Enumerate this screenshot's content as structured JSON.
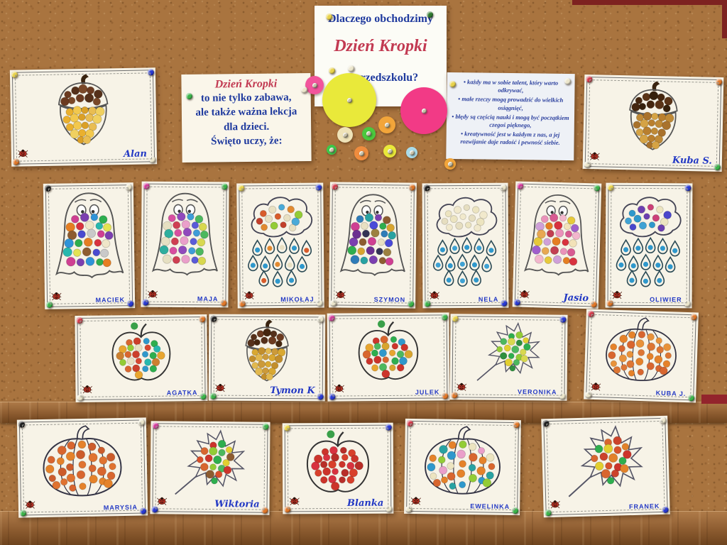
{
  "signs": {
    "top": {
      "line1": "Dlaczego obchodzimy",
      "title": "Dzień Kropki",
      "line2": "w przedszkolu?"
    },
    "left": {
      "title": "Dzień Kropki",
      "line1": "to nie tylko zabawa,",
      "line2": "ale także ważna lekcja",
      "line3": "dla dzieci.",
      "line4": "Święto uczy, że:"
    },
    "right": {
      "bullets": [
        "każdy ma w sobie talent, który warto odkrywać,",
        "małe rzeczy mogą prowadzić do wielkich osiągnięć,",
        "błędy są częścią nauki i mogą być początkiem czegoś pięknego,",
        "kreatywność jest w każdym z nas, a jej rozwijanie daje radość i pewność siebie."
      ]
    }
  },
  "colors": {
    "sign_title": "#c23a52",
    "sign_text": "#1f3a9e",
    "name_label": "#2238c4"
  },
  "decor_dots": [
    {
      "color": "#f2549c",
      "size": 26
    },
    {
      "color": "#e9e93a",
      "size": 76
    },
    {
      "color": "#f23a86",
      "size": 66
    },
    {
      "color": "#f2a53a",
      "size": 24
    },
    {
      "color": "#efe3b8",
      "size": 22
    },
    {
      "color": "#4cc83e",
      "size": 19
    },
    {
      "color": "#3ec84a",
      "size": 14
    },
    {
      "color": "#ef8c3e",
      "size": 20
    },
    {
      "color": "#e9e93a",
      "size": 18
    },
    {
      "color": "#aadcea",
      "size": 16
    },
    {
      "color": "#f2a53a",
      "size": 16
    }
  ],
  "artworks": [
    {
      "label": "Alan",
      "label_style": "script",
      "type": "acorn",
      "cap_colors": [
        "#6b3a20",
        "#55301a",
        "#7a4828"
      ],
      "dot_colors": [
        "#eab02e",
        "#f2c84e",
        "#dba027",
        "#e9bd52",
        "#f0d060"
      ]
    },
    {
      "label": "Kuba S.",
      "label_style": "script",
      "type": "acorn",
      "cap_colors": [
        "#45260f",
        "#5a3317",
        "#35200c"
      ],
      "dot_colors": [
        "#c08a36",
        "#a9722c",
        "#d5a345",
        "#b97f2e"
      ]
    },
    {
      "label": "MACIEK",
      "label_style": "print",
      "type": "ghost",
      "dot_colors": [
        "#cf3f92",
        "#7b3fb0",
        "#2f93d8",
        "#2eae4e",
        "#e57e22",
        "#d8323f",
        "#efe6c8",
        "#27b8ae",
        "#e3e352",
        "#8d5c30",
        "#4a4ad0",
        "#c9c9c9"
      ]
    },
    {
      "label": "MAJA",
      "label_style": "print",
      "type": "ghost",
      "dot_colors": [
        "#d84fa0",
        "#9049bc",
        "#3f9cd8",
        "#4cb85e",
        "#e6e0c2",
        "#cf3f52",
        "#ea9fca",
        "#5b5bd8",
        "#d8d84f",
        "#2eae9e"
      ]
    },
    {
      "label": "MIKOŁAJ",
      "label_style": "print",
      "type": "cloudrain",
      "dot_colors": [
        "#d85c2b",
        "#e8e0c2",
        "#4aaad8",
        "#e28a30",
        "#93cc36",
        "#c23f2b",
        "#e8e0c2"
      ],
      "drop_dot_colors": [
        "#2f98cc",
        "#e28a30",
        "#e8e0c2",
        "#2f98cc",
        "#d85c2b",
        "#2f98cc"
      ]
    },
    {
      "label": "SZYMON",
      "label_style": "print",
      "type": "ghost",
      "dot_colors": [
        "#2f7cb8",
        "#28a2a2",
        "#7b3fb0",
        "#8d5c30",
        "#cf3f92",
        "#e8e0c2",
        "#4a4ad8",
        "#2eae4e",
        "#d8a52f",
        "#6b2f90",
        "#333355",
        "#9c8040"
      ]
    },
    {
      "label": "NELA",
      "label_style": "print",
      "type": "cloudrain",
      "dot_colors": [
        "#ece4c0",
        "#f1e9cc",
        "#e6dec0"
      ],
      "drop_dot_colors": [
        "#2f98cc",
        "#3fa2d4"
      ]
    },
    {
      "label": "Jasio",
      "label_style": "script",
      "type": "ghost",
      "dot_colors": [
        "#ea92ba",
        "#d85a92",
        "#f2b6cc",
        "#e6c93a",
        "#cfa0d8",
        "#e57e22",
        "#d8323f",
        "#f2e2b8",
        "#a05fcc",
        "#e8a852",
        "#c23f52"
      ]
    },
    {
      "label": "OLIWIER",
      "label_style": "print",
      "type": "cloudrain",
      "dot_colors": [
        "#2f98cc",
        "#6b3fb0",
        "#cc3f78",
        "#ece4c0",
        "#4a46cc",
        "#3fa2d4"
      ],
      "drop_dot_colors": [
        "#2f98cc"
      ]
    },
    {
      "label": "AGATKA",
      "label_style": "print",
      "type": "apple",
      "dot_colors": [
        "#d8662f",
        "#cc3f2b",
        "#2f98cc",
        "#2eae4e",
        "#e8a52f",
        "#93cc36",
        "#e8e0c2",
        "#d8462f",
        "#27b8ae",
        "#cc8030"
      ]
    },
    {
      "label": "Tymon K",
      "label_style": "script",
      "type": "acorn",
      "cap_colors": [
        "#55301a",
        "#6b3a20",
        "#45260f"
      ],
      "dot_colors": [
        "#d9a832",
        "#c28e2c",
        "#e2b84e",
        "#cc9a3a"
      ]
    },
    {
      "label": "JULEK",
      "label_style": "print",
      "type": "apple",
      "dot_colors": [
        "#cc342b",
        "#d8662f",
        "#2eae4e",
        "#2f98cc",
        "#e8a52f",
        "#4cb85e",
        "#d8a52f",
        "#cc342b"
      ]
    },
    {
      "label": "VERONIKA",
      "label_style": "print",
      "type": "leaf",
      "dot_colors": [
        "#2eae4e",
        "#93cc36",
        "#e2cf2f",
        "#4cb85e",
        "#d8d84f",
        "#2f8f3f"
      ]
    },
    {
      "label": "KUBA J.",
      "label_style": "print",
      "type": "pumpkin",
      "dot_colors": [
        "#e5822a",
        "#d8662f",
        "#e8923a",
        "#dd7634"
      ]
    },
    {
      "label": "MARYSIA",
      "label_style": "print",
      "type": "pumpkin",
      "dot_colors": [
        "#d8662f",
        "#e5822a",
        "#cc5c2b",
        "#e07330"
      ]
    },
    {
      "label": "Wiktoria",
      "label_style": "script",
      "type": "leaf",
      "dot_colors": [
        "#cc342b",
        "#2eae4e",
        "#e2cf2f",
        "#d8662f",
        "#93cc36",
        "#4cb85e",
        "#8d5c30",
        "#d84f2b"
      ]
    },
    {
      "label": "Blanka",
      "label_style": "script",
      "type": "apple",
      "dot_colors": [
        "#cc342b",
        "#d8323f",
        "#b82e28",
        "#d8402b"
      ]
    },
    {
      "label": "EWELINKA",
      "label_style": "print",
      "type": "pumpkin",
      "dot_colors": [
        "#e5822a",
        "#2f98cc",
        "#ece4c0",
        "#d8662f",
        "#28a2a2",
        "#93cc36",
        "#ea9fca",
        "#e5822a"
      ]
    },
    {
      "label": "FRANEK",
      "label_style": "print",
      "type": "leaf",
      "dot_colors": [
        "#d8662f",
        "#cc432b",
        "#e2822a",
        "#2eae4e",
        "#e2cf2f",
        "#d8532b",
        "#cc342b"
      ]
    }
  ]
}
